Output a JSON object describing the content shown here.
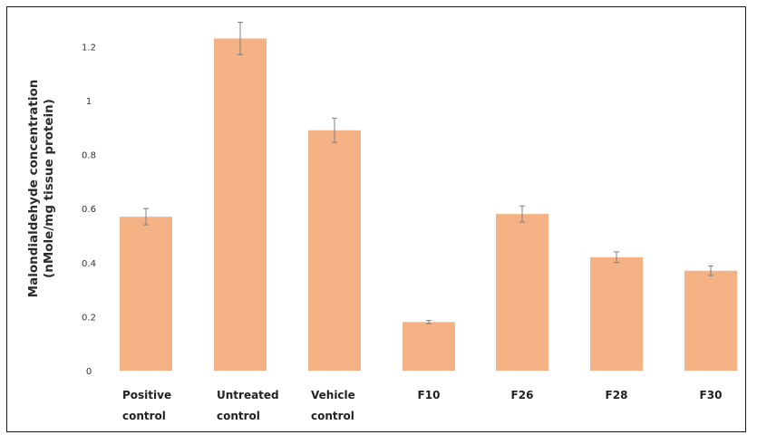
{
  "chart_data": {
    "type": "bar",
    "title": "",
    "xlabel": "",
    "ylabel": [
      "Malondialdehyde concentration",
      "(nMole/mg tissue protein)"
    ],
    "ylim": [
      0,
      1.2
    ],
    "yticks": [
      "0",
      "0.2",
      "0.4",
      "0.6",
      "0.8",
      "1",
      "1.2"
    ],
    "grid": false,
    "bar_color": "#f4b183",
    "error_bar_color": "#7f7f7f",
    "categories": [
      [
        "Positive",
        "control"
      ],
      [
        "Untreated",
        "control"
      ],
      [
        "Vehicle",
        "control"
      ],
      [
        "F10"
      ],
      [
        "F26"
      ],
      [
        "F28"
      ],
      [
        "F30"
      ]
    ],
    "values": [
      0.57,
      1.23,
      0.89,
      0.18,
      0.58,
      0.42,
      0.37
    ],
    "errors": [
      0.03,
      0.06,
      0.045,
      0.006,
      0.03,
      0.02,
      0.018
    ]
  }
}
